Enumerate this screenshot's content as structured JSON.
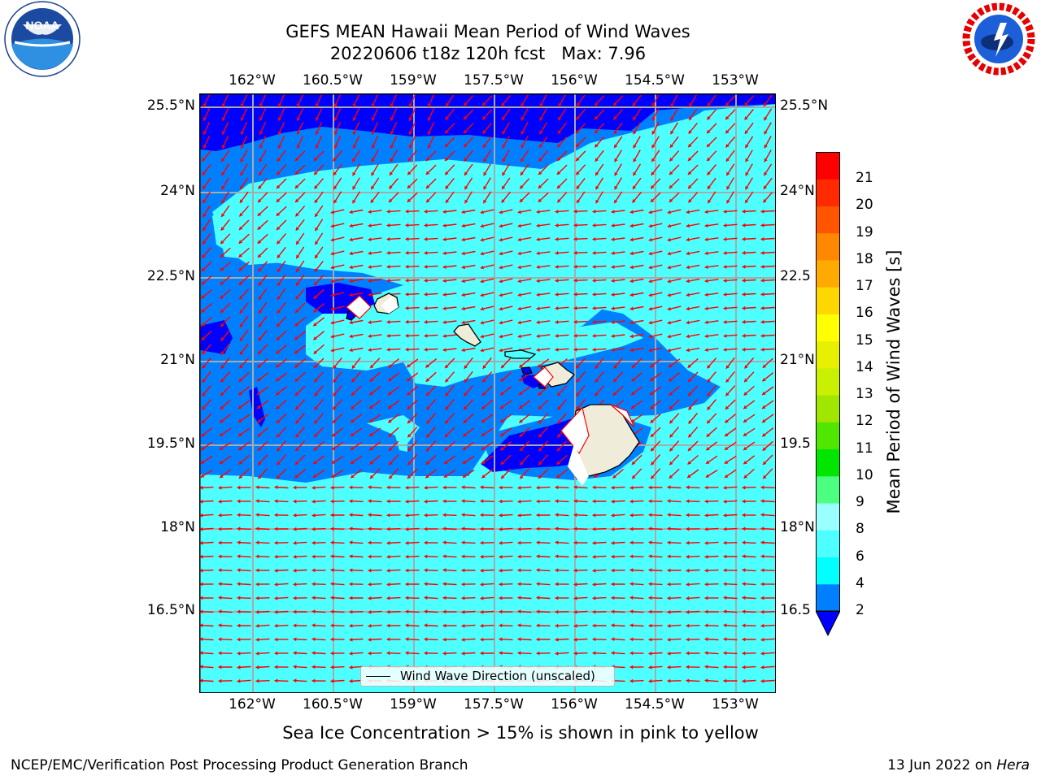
{
  "title": {
    "line1": "GEFS MEAN Hawaii Mean Period of Wind Waves",
    "line2": "20220606 t18z 120h fcst   Max: 7.96"
  },
  "map": {
    "lon_ticks": [
      "162°W",
      "160.5°W",
      "159°W",
      "157.5°W",
      "156°W",
      "154.5°W",
      "153°W"
    ],
    "lat_ticks": [
      "25.5°N",
      "24°N",
      "22.5°N",
      "21°N",
      "19.5°N",
      "18°N",
      "16.5°N"
    ],
    "lat_ticks_right": [
      "25.5°N",
      "24°N",
      "22.5",
      "21°N",
      "19.5",
      "18°N",
      "16.5"
    ],
    "lon_range": [
      -163,
      -152.7
    ],
    "lat_range": [
      14.8,
      25.7
    ],
    "grid": true,
    "vector_color": "#ff0000",
    "land_color": "#efecd9",
    "legend": {
      "label": "Wind Wave Direction (unscaled)"
    }
  },
  "colorbar": {
    "label": "Mean Period of Wind Waves [s]",
    "ticks": [
      "2",
      "4",
      "6",
      "8",
      "9",
      "10",
      "11",
      "12",
      "13",
      "14",
      "15",
      "16",
      "17",
      "18",
      "19",
      "20",
      "21"
    ],
    "colors": [
      "#0080ff",
      "#00ffff",
      "#4dffff",
      "#99ffff",
      "#4dff80",
      "#00e600",
      "#50e600",
      "#a0e600",
      "#c8f000",
      "#e6f000",
      "#ffff00",
      "#ffd700",
      "#ffaa00",
      "#ff8800",
      "#ff5500",
      "#ff2a00",
      "#ff0000"
    ],
    "under_color": "#0000ff"
  },
  "footnote": "Sea Ice Concentration > 15% is shown in pink to yellow",
  "credit": "NCEP/EMC/Verification Post Processing Product Generation Branch",
  "datestamp": {
    "date": "13 Jun 2022 on",
    "machine": "Hera"
  },
  "logos": {
    "left": "NOAA",
    "right": "NATIONAL WEATHER SERVICE"
  }
}
